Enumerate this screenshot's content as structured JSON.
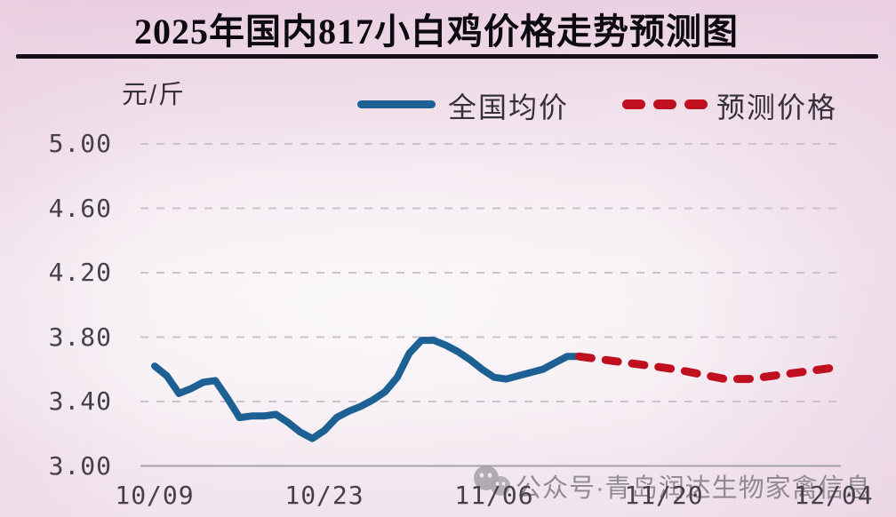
{
  "title": "2025年国内817小白鸡价格走势预测图",
  "unit_label": "元/斤",
  "legend": {
    "actual": {
      "label": "全国均价",
      "style": "solid"
    },
    "forecast": {
      "label": "预测价格",
      "style": "dashed"
    }
  },
  "watermark": {
    "icon": "wechat-icon",
    "text": "公众号·青岛润达生物家禽信息"
  },
  "colors": {
    "line_actual": "#1d6094",
    "line_forecast": "#c00f1e",
    "grid": "#cbc2cc",
    "axis_base": "#a8a2ab",
    "tick_text": "#45404b",
    "title_text": "#0e0a12",
    "watermark_grey": "#7a777d"
  },
  "chart_data": {
    "type": "line",
    "title": "2025年国内817小白鸡价格走势预测图",
    "ylabel": "元/斤",
    "xlabel": "",
    "ylim": [
      3.0,
      5.0
    ],
    "grid": "horizontal-dashed",
    "legend_position": "top",
    "yticks": [
      {
        "label": "5.00",
        "value": 5.0
      },
      {
        "label": "4.60",
        "value": 4.6
      },
      {
        "label": "4.20",
        "value": 4.2
      },
      {
        "label": "3.80",
        "value": 3.8
      },
      {
        "label": "3.40",
        "value": 3.4
      },
      {
        "label": "3.00",
        "value": 3.0
      }
    ],
    "xticks": [
      {
        "label": "10/09",
        "day": 0
      },
      {
        "label": "10/23",
        "day": 14
      },
      {
        "label": "11/06",
        "day": 28
      },
      {
        "label": "11/20",
        "day": 42
      },
      {
        "label": "12/04",
        "day": 56
      }
    ],
    "series": [
      {
        "name": "全国均价",
        "style": "solid",
        "color": "#1d6094",
        "points": [
          [
            0,
            3.62
          ],
          [
            1,
            3.56
          ],
          [
            2,
            3.45
          ],
          [
            3,
            3.48
          ],
          [
            4,
            3.52
          ],
          [
            5,
            3.53
          ],
          [
            6,
            3.42
          ],
          [
            7,
            3.3
          ],
          [
            8,
            3.31
          ],
          [
            9,
            3.31
          ],
          [
            10,
            3.32
          ],
          [
            11,
            3.27
          ],
          [
            12,
            3.21
          ],
          [
            13,
            3.17
          ],
          [
            14,
            3.22
          ],
          [
            15,
            3.3
          ],
          [
            16,
            3.34
          ],
          [
            17,
            3.37
          ],
          [
            18,
            3.41
          ],
          [
            19,
            3.46
          ],
          [
            20,
            3.55
          ],
          [
            21,
            3.7
          ],
          [
            22,
            3.78
          ],
          [
            23,
            3.78
          ],
          [
            24,
            3.75
          ],
          [
            25,
            3.71
          ],
          [
            26,
            3.66
          ],
          [
            27,
            3.6
          ],
          [
            28,
            3.55
          ],
          [
            29,
            3.54
          ],
          [
            30,
            3.56
          ],
          [
            31,
            3.58
          ],
          [
            32,
            3.6
          ],
          [
            33,
            3.64
          ],
          [
            34,
            3.68
          ],
          [
            35,
            3.68
          ]
        ]
      },
      {
        "name": "预测价格",
        "style": "dashed",
        "color": "#c00f1e",
        "points": [
          [
            35,
            3.68
          ],
          [
            37,
            3.66
          ],
          [
            39,
            3.64
          ],
          [
            41,
            3.62
          ],
          [
            43,
            3.6
          ],
          [
            45,
            3.57
          ],
          [
            47,
            3.54
          ],
          [
            49,
            3.54
          ],
          [
            51,
            3.56
          ],
          [
            53,
            3.58
          ],
          [
            56,
            3.61
          ]
        ]
      }
    ]
  }
}
